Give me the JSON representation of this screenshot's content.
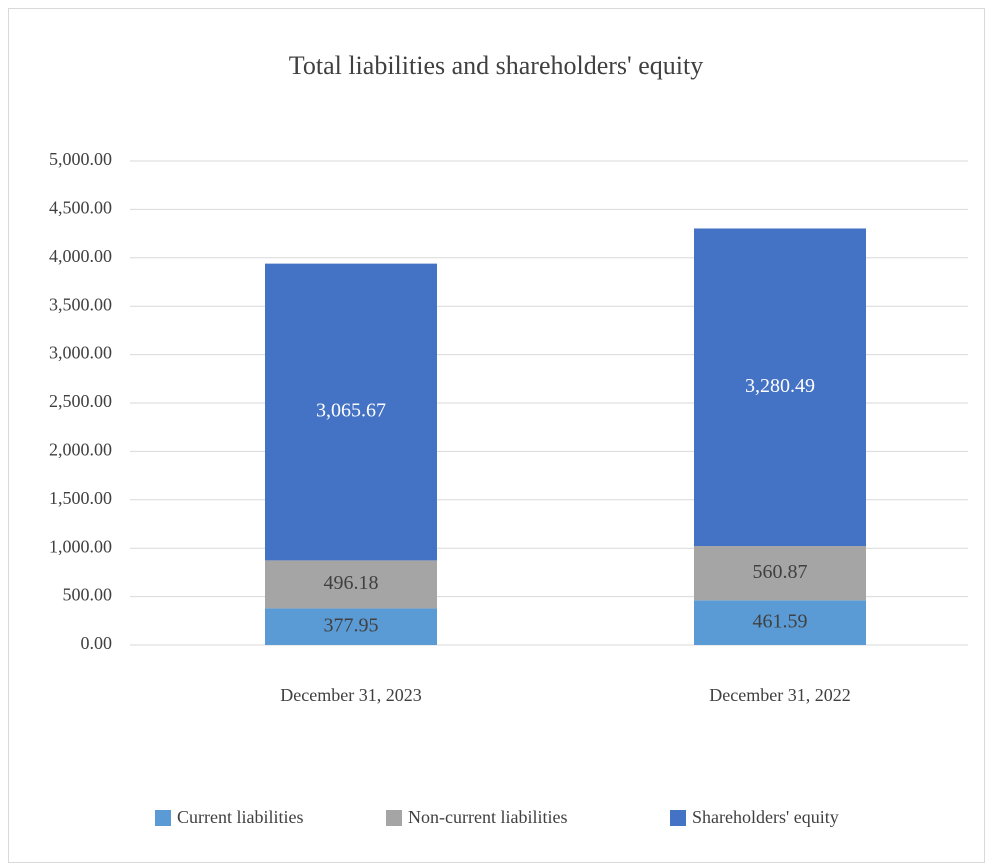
{
  "chart_data": {
    "type": "bar",
    "stacked": true,
    "title": "Total liabilities and shareholders' equity",
    "categories": [
      "December 31, 2023",
      "December 31, 2022"
    ],
    "series": [
      {
        "name": "Current liabilities",
        "color": "#5b9bd5",
        "values": [
          377.95,
          461.59
        ],
        "value_labels": [
          "377.95",
          "461.59"
        ]
      },
      {
        "name": "Non-current liabilities",
        "color": "#a5a5a5",
        "values": [
          496.18,
          560.87
        ],
        "value_labels": [
          "496.18",
          "560.87"
        ]
      },
      {
        "name": "Shareholders' equity",
        "color": "#4472c4",
        "values": [
          3065.67,
          3280.49
        ],
        "value_labels": [
          "3,065.67",
          "3,280.49"
        ]
      }
    ],
    "ylim": [
      0,
      5000
    ],
    "yticks": [
      {
        "value": 0,
        "label": "0.00"
      },
      {
        "value": 500,
        "label": "500.00"
      },
      {
        "value": 1000,
        "label": "1,000.00"
      },
      {
        "value": 1500,
        "label": "1,500.00"
      },
      {
        "value": 2000,
        "label": "2,000.00"
      },
      {
        "value": 2500,
        "label": "2,500.00"
      },
      {
        "value": 3000,
        "label": "3,000.00"
      },
      {
        "value": 3500,
        "label": "3,500.00"
      },
      {
        "value": 4000,
        "label": "4,000.00"
      },
      {
        "value": 4500,
        "label": "4,500.00"
      },
      {
        "value": 5000,
        "label": "5,000.00"
      }
    ],
    "grid": true,
    "legend": "bottom"
  }
}
